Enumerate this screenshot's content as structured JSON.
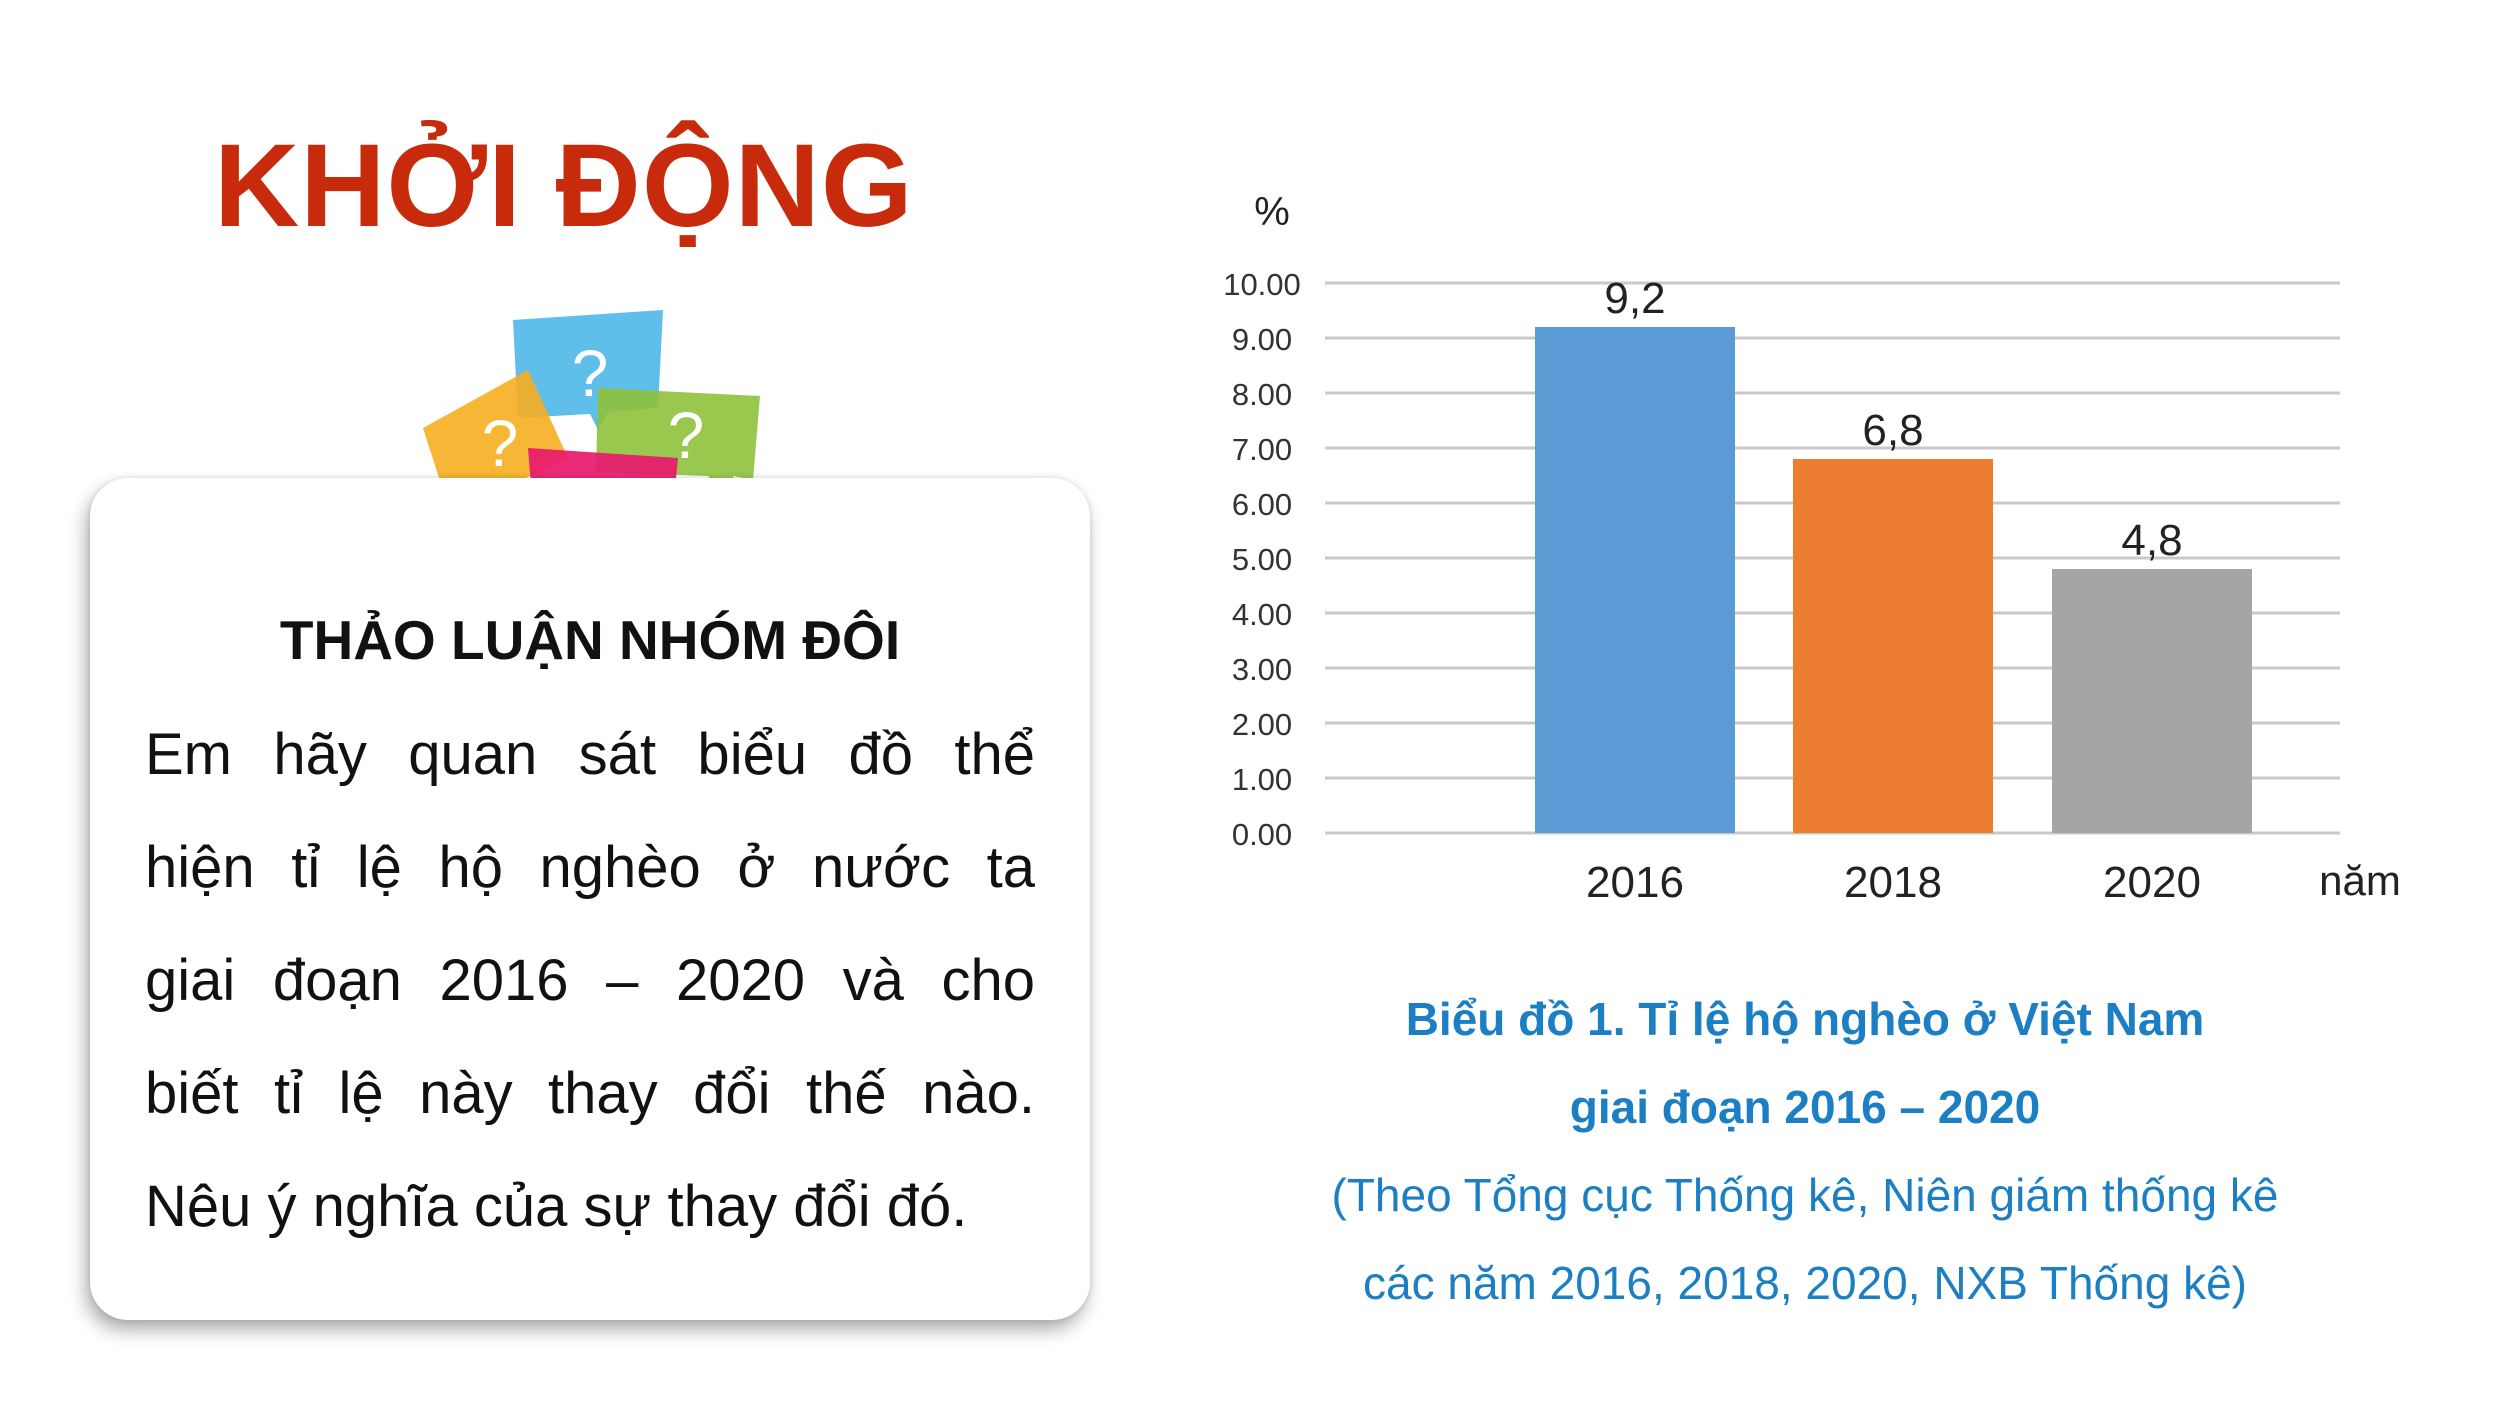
{
  "slide": {
    "title": "KHỞI ĐỘNG"
  },
  "bubbles": {
    "colors": [
      "#4fb8e8",
      "#f6ae1f",
      "#8fc23c",
      "#e8196c"
    ],
    "glyph": "?"
  },
  "card": {
    "heading": "THẢO LUẬN NHÓM ĐÔI",
    "lines": [
      "Em hãy quan sát biểu đồ thể",
      "hiện tỉ lệ hộ nghèo ở nước ta",
      "giai đoạn 2016 – 2020 và cho",
      "biết tỉ lệ này thay đổi thế nào.",
      "Nêu ý nghĩa của sự thay đổi đó."
    ]
  },
  "caption": {
    "title_line1": "Biểu đồ 1. Tỉ lệ hộ nghèo ở Việt Nam",
    "title_line2": "giai đoạn 2016 – 2020",
    "source_line1": "(Theo Tổng cục Thống kê, Niên giám thống kê",
    "source_line2": "các năm 2016, 2018, 2020, NXB Thống kê)"
  },
  "chart_data": {
    "type": "bar",
    "categories": [
      "2016",
      "2018",
      "2020"
    ],
    "values": [
      9.2,
      6.8,
      4.8
    ],
    "value_labels": [
      "9,2",
      "6,8",
      "4,8"
    ],
    "colors": [
      "#5b9bd5",
      "#ed7d31",
      "#a5a5a5"
    ],
    "ylabel": "%",
    "xlabel": "năm",
    "ylim": [
      0,
      10
    ],
    "yticks": [
      "0.00",
      "1.00",
      "2.00",
      "3.00",
      "4.00",
      "5.00",
      "6.00",
      "7.00",
      "8.00",
      "9.00",
      "10.00"
    ],
    "grid": true
  }
}
